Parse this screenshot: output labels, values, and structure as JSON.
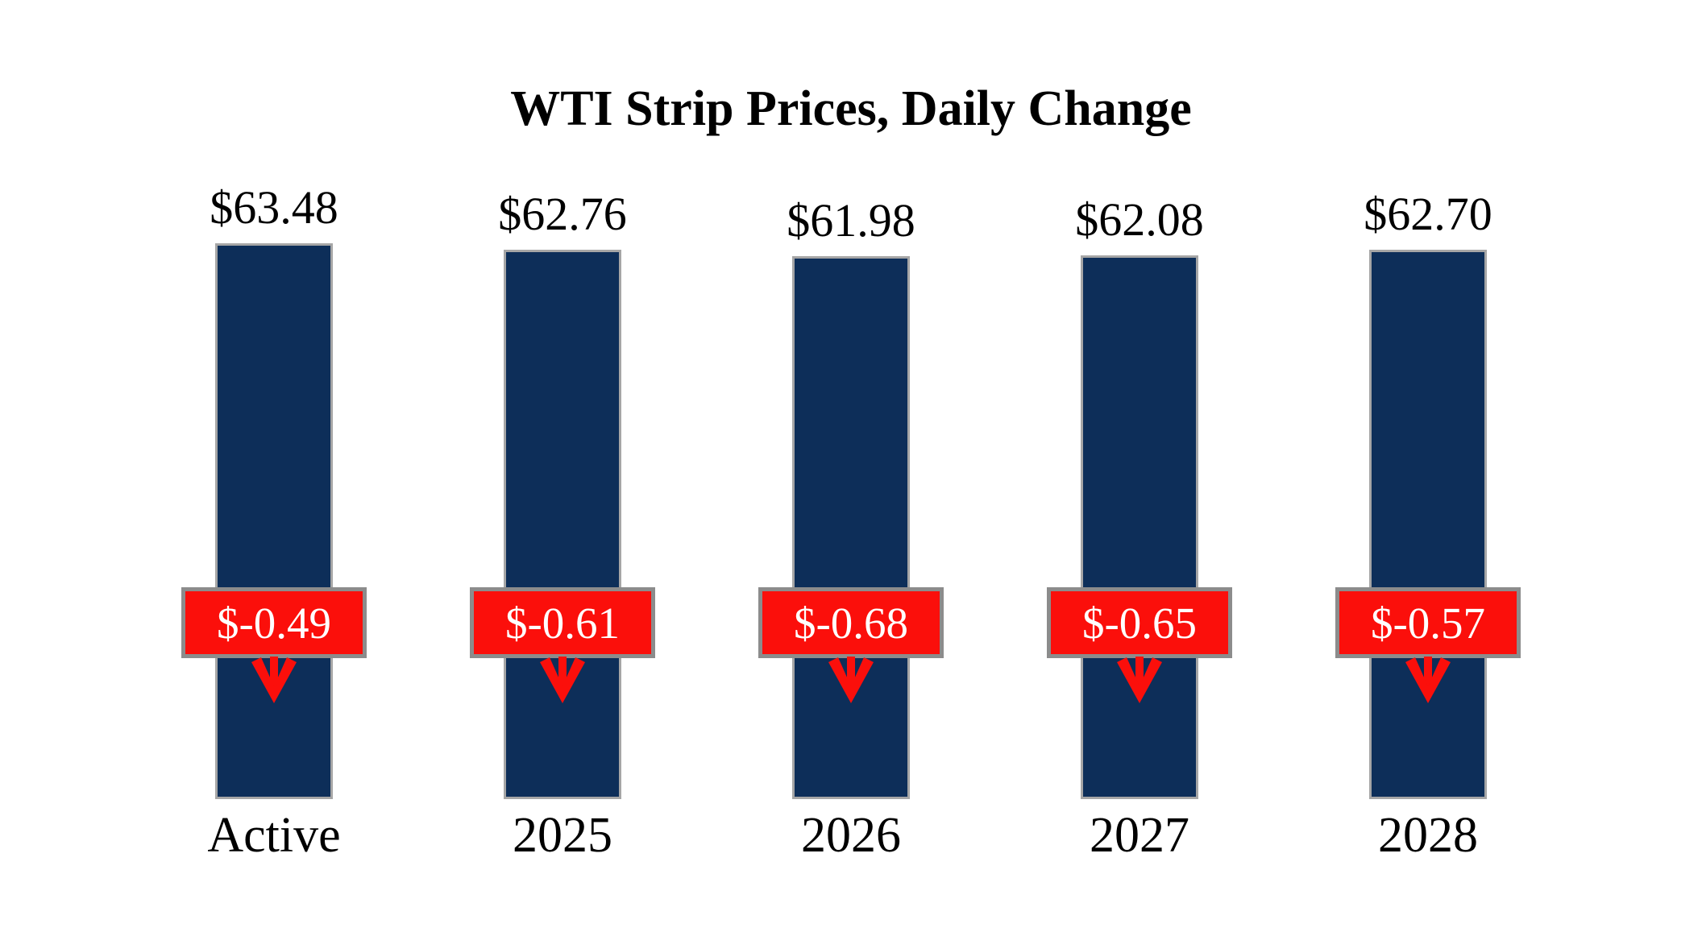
{
  "title": "WTI Strip Prices, Daily Change",
  "colors": {
    "bar": "#0D2E59",
    "bar_border": "#A6A6A6",
    "badge": "#FB0F0B",
    "badge_border": "#8C8C8C",
    "badge_text": "#FFFFFF",
    "arrow": "#FB0F0B",
    "background": "#FFFFFF",
    "text": "#000000"
  },
  "chart_data": {
    "type": "bar",
    "title": "WTI Strip Prices, Daily Change",
    "categories": [
      "Active",
      "2025",
      "2026",
      "2027",
      "2028"
    ],
    "series": [
      {
        "name": "WTI Strip Price",
        "values": [
          63.48,
          62.76,
          61.98,
          62.08,
          62.7
        ]
      },
      {
        "name": "Daily Change",
        "values": [
          -0.49,
          -0.61,
          -0.68,
          -0.65,
          -0.57
        ]
      }
    ],
    "labels": {
      "price": [
        "$63.48",
        "$62.76",
        "$61.98",
        "$62.08",
        "$62.70"
      ],
      "change": [
        "$-0.49",
        "$-0.61",
        "$-0.68",
        "$-0.65",
        "$-0.57"
      ]
    },
    "xlabel": "",
    "ylabel": "",
    "ylim": [
      0,
      63.48
    ],
    "grid": false,
    "legend": "none",
    "annotations": "red badge with daily change and red down arrow overlaid on each bar"
  }
}
